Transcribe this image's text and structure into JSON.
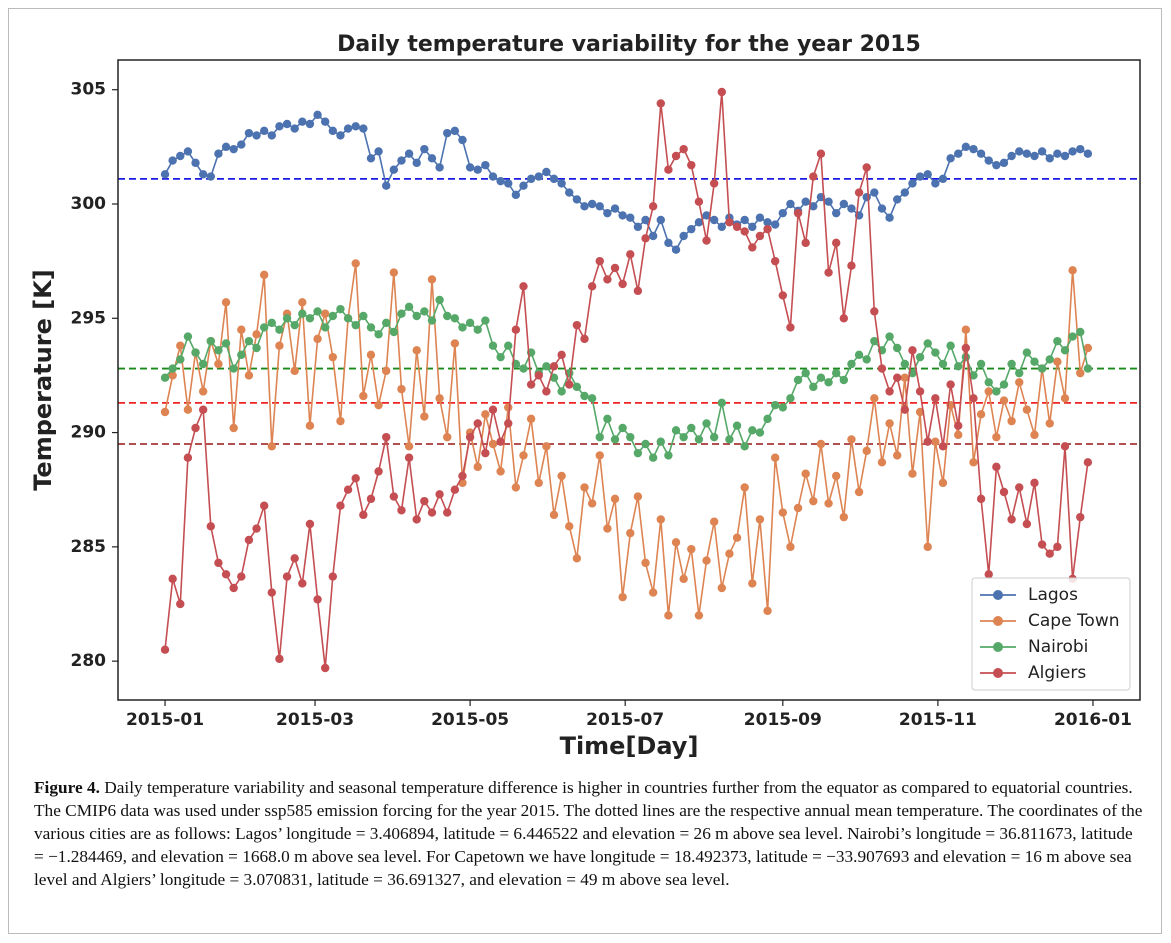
{
  "chart_data": {
    "type": "line",
    "title": "Daily temperature variability for the year 2015",
    "xlabel": "Time[Day]",
    "ylabel": "Temperature [K]",
    "x": [
      0,
      3,
      6,
      9,
      12,
      15,
      18,
      21,
      24,
      27,
      30,
      33,
      36,
      39,
      42,
      45,
      48,
      51,
      54,
      57,
      60,
      63,
      66,
      69,
      72,
      75,
      78,
      81,
      84,
      87,
      90,
      93,
      96,
      99,
      102,
      105,
      108,
      111,
      114,
      117,
      120,
      123,
      126,
      129,
      132,
      135,
      138,
      141,
      144,
      147,
      150,
      153,
      156,
      159,
      162,
      165,
      168,
      171,
      174,
      177,
      180,
      183,
      186,
      189,
      192,
      195,
      198,
      201,
      204,
      207,
      210,
      213,
      216,
      219,
      222,
      225,
      228,
      231,
      234,
      237,
      240,
      243,
      246,
      249,
      252,
      255,
      258,
      261,
      264,
      267,
      270,
      273,
      276,
      279,
      282,
      285,
      288,
      291,
      294,
      297,
      300,
      303,
      306,
      309,
      312,
      315,
      318,
      321,
      324,
      327,
      330,
      333,
      336,
      339,
      342,
      345,
      348,
      351,
      354,
      357,
      360,
      363
    ],
    "series": [
      {
        "name": "Lagos",
        "color": "#4c72b0",
        "values": [
          301.3,
          301.9,
          302.1,
          302.3,
          301.8,
          301.3,
          301.2,
          302.2,
          302.5,
          302.4,
          302.6,
          303.1,
          303.0,
          303.2,
          303.0,
          303.4,
          303.5,
          303.3,
          303.6,
          303.5,
          303.9,
          303.6,
          303.2,
          303.0,
          303.3,
          303.4,
          303.3,
          302.0,
          302.3,
          300.8,
          301.5,
          301.9,
          302.2,
          301.8,
          302.4,
          302.0,
          301.6,
          303.1,
          303.2,
          302.8,
          301.6,
          301.5,
          301.7,
          301.2,
          301.0,
          300.9,
          300.4,
          300.8,
          301.1,
          301.2,
          301.4,
          301.1,
          300.9,
          300.5,
          300.2,
          299.9,
          300.0,
          299.9,
          299.6,
          299.8,
          299.5,
          299.4,
          299.0,
          299.3,
          298.6,
          299.3,
          298.3,
          298.0,
          298.6,
          298.9,
          299.2,
          299.5,
          299.3,
          299.0,
          299.4,
          299.1,
          299.3,
          299.0,
          299.4,
          299.2,
          299.1,
          299.6,
          300.0,
          299.7,
          300.1,
          299.9,
          300.3,
          300.1,
          299.6,
          300.0,
          299.8,
          299.5,
          300.3,
          300.5,
          299.8,
          299.4,
          300.2,
          300.5,
          300.9,
          301.2,
          301.3,
          300.9,
          301.1,
          302.0,
          302.2,
          302.5,
          302.4,
          302.2,
          301.9,
          301.7,
          301.8,
          302.1,
          302.3,
          302.2,
          302.1,
          302.3,
          302.0,
          302.2,
          302.1,
          302.3,
          302.4,
          302.2
        ]
      },
      {
        "name": "Cape Town",
        "color": "#dd8452",
        "values": [
          290.9,
          292.5,
          293.8,
          291.0,
          293.5,
          291.8,
          294.0,
          293.0,
          295.7,
          290.2,
          294.5,
          292.5,
          294.3,
          296.9,
          289.4,
          293.8,
          295.2,
          292.7,
          295.7,
          290.3,
          294.1,
          295.2,
          293.3,
          290.5,
          295.0,
          297.4,
          291.6,
          293.4,
          291.2,
          292.7,
          297.0,
          291.9,
          289.4,
          293.6,
          290.7,
          296.7,
          291.5,
          289.8,
          293.9,
          287.8,
          290.0,
          288.5,
          290.8,
          289.5,
          288.3,
          291.1,
          287.6,
          289.0,
          290.6,
          287.8,
          289.4,
          286.4,
          288.1,
          285.9,
          284.5,
          287.6,
          286.9,
          289.0,
          285.8,
          287.1,
          282.8,
          285.6,
          287.2,
          284.3,
          283.0,
          286.2,
          282.0,
          285.2,
          283.6,
          284.9,
          282.0,
          284.4,
          286.1,
          283.2,
          284.7,
          285.4,
          287.6,
          283.4,
          286.2,
          282.2,
          288.9,
          286.5,
          285.0,
          286.7,
          288.2,
          287.0,
          289.5,
          286.9,
          288.1,
          286.3,
          289.7,
          287.4,
          289.2,
          291.5,
          288.7,
          290.4,
          289.0,
          292.4,
          288.2,
          290.9,
          285.0,
          289.6,
          287.8,
          291.2,
          289.9,
          294.5,
          288.7,
          290.8,
          291.8,
          289.8,
          291.4,
          290.5,
          292.2,
          291.0,
          289.9,
          292.8,
          290.4,
          293.1,
          291.5,
          297.1,
          292.6,
          293.7
        ]
      },
      {
        "name": "Nairobi",
        "color": "#55a868",
        "values": [
          292.4,
          292.8,
          293.2,
          294.2,
          293.5,
          293.0,
          294.0,
          293.6,
          293.9,
          292.8,
          293.4,
          294.0,
          293.7,
          294.6,
          294.8,
          294.5,
          295.0,
          294.7,
          295.2,
          295.0,
          295.3,
          294.6,
          295.1,
          295.4,
          295.0,
          294.7,
          295.1,
          294.6,
          294.3,
          294.8,
          294.4,
          295.2,
          295.5,
          295.1,
          295.3,
          294.9,
          295.8,
          295.1,
          295.0,
          294.6,
          294.8,
          294.5,
          294.9,
          293.8,
          293.3,
          293.8,
          293.0,
          292.8,
          293.5,
          292.6,
          292.9,
          292.4,
          291.8,
          292.6,
          292.0,
          291.6,
          291.5,
          289.8,
          290.6,
          289.7,
          290.2,
          289.8,
          289.1,
          289.5,
          288.9,
          289.6,
          289.0,
          290.1,
          289.8,
          290.2,
          289.7,
          290.4,
          289.8,
          291.3,
          289.7,
          290.3,
          289.4,
          290.1,
          290.0,
          290.6,
          291.2,
          291.1,
          291.5,
          292.3,
          292.6,
          292.0,
          292.4,
          292.2,
          292.6,
          292.3,
          293.0,
          293.4,
          293.2,
          294.0,
          293.6,
          294.2,
          293.7,
          293.0,
          292.6,
          293.3,
          293.9,
          293.5,
          293.0,
          293.8,
          292.9,
          293.3,
          292.5,
          293.0,
          292.2,
          291.8,
          292.1,
          293.0,
          292.6,
          293.5,
          293.1,
          292.8,
          293.2,
          294.0,
          293.6,
          294.2,
          294.4,
          292.8
        ]
      },
      {
        "name": "Algiers",
        "color": "#c44e52",
        "values": [
          280.5,
          283.6,
          282.5,
          288.9,
          290.2,
          291.0,
          285.9,
          284.3,
          283.8,
          283.2,
          283.7,
          285.3,
          285.8,
          286.8,
          283.0,
          280.1,
          283.7,
          284.5,
          283.4,
          286.0,
          282.7,
          279.7,
          283.7,
          286.8,
          287.5,
          288.0,
          286.4,
          287.1,
          288.3,
          289.8,
          287.2,
          286.6,
          288.9,
          286.2,
          287.0,
          286.5,
          287.3,
          286.5,
          287.5,
          288.1,
          289.8,
          290.4,
          289.1,
          291.0,
          289.6,
          290.4,
          294.5,
          296.4,
          292.1,
          292.5,
          291.8,
          292.9,
          293.4,
          292.1,
          294.7,
          294.1,
          296.4,
          297.5,
          296.7,
          297.2,
          296.5,
          297.8,
          296.2,
          298.5,
          299.9,
          304.4,
          301.5,
          302.1,
          302.4,
          301.7,
          300.1,
          298.4,
          300.9,
          304.9,
          299.2,
          299.0,
          298.8,
          298.1,
          298.6,
          298.9,
          297.5,
          296.0,
          294.6,
          299.6,
          298.3,
          301.2,
          302.2,
          297.0,
          298.3,
          295.0,
          297.3,
          300.5,
          301.6,
          295.3,
          292.8,
          291.8,
          292.4,
          291.0,
          293.6,
          291.8,
          289.6,
          291.5,
          289.4,
          292.1,
          290.3,
          293.7,
          291.5,
          287.1,
          283.8,
          288.5,
          287.4,
          286.2,
          287.6,
          286.0,
          287.8,
          285.1,
          284.7,
          285.0,
          289.4,
          283.6,
          286.3,
          288.7
        ]
      }
    ],
    "hlines": [
      {
        "value": 301.1,
        "color": "#1a1ae6"
      },
      {
        "value": 292.8,
        "color": "#1a8a1a"
      },
      {
        "value": 291.3,
        "color": "#ee2222"
      },
      {
        "value": 289.5,
        "color": "#a83838"
      }
    ],
    "xlim": [
      -18.5,
      383.5
    ],
    "xticks": [
      {
        "value": 0,
        "label": "2015-01"
      },
      {
        "value": 59,
        "label": "2015-03"
      },
      {
        "value": 120,
        "label": "2015-05"
      },
      {
        "value": 181,
        "label": "2015-07"
      },
      {
        "value": 243,
        "label": "2015-09"
      },
      {
        "value": 304,
        "label": "2015-11"
      },
      {
        "value": 365,
        "label": "2016-01"
      }
    ],
    "ylim": [
      278.3,
      306.3
    ],
    "yticks": [
      280,
      285,
      290,
      295,
      300,
      305
    ],
    "legend": "lower right",
    "grid": false
  },
  "caption": {
    "label": "Figure 4.",
    "text": " Daily temperature variability and seasonal temperature difference is higher in countries further from the equator as compared to equatorial countries. The CMIP6 data was used under ssp585 emission forcing for the year 2015. The dotted lines are the respective annual mean temperature. The coordinates of the various cities are as follows: Lagos’ longitude = 3.406894, latitude = 6.446522 and elevation = 26 m above sea level. Nairobi’s longitude = 36.811673, latitude = −1.284469, and elevation = 1668.0 m above sea level. For Capetown we have longitude = 18.492373, latitude = −33.907693 and elevation = 16 m above sea level and Algiers’ longitude = 3.070831, latitude = 36.691327, and elevation = 49 m above sea level."
  }
}
